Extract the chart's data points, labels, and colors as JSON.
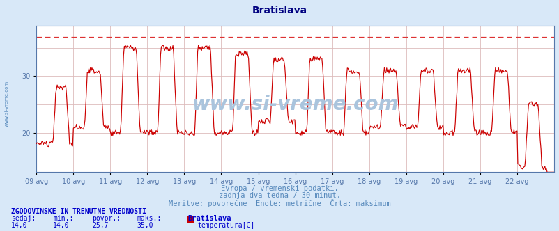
{
  "title": "Bratislava",
  "title_color": "#000080",
  "title_fontsize": 10,
  "bg_color": "#d8e8f8",
  "plot_bg_color": "#ffffff",
  "line_color": "#cc0000",
  "dashed_line_color": "#dd3333",
  "dashed_line_y": 37.0,
  "ylim": [
    13,
    39
  ],
  "yticks": [
    20,
    30
  ],
  "watermark": "www.si-vreme.com",
  "watermark_color": "#aac4dd",
  "watermark_alpha": 0.55,
  "footer_lines": [
    "Evropa / vremenski podatki.",
    "zadnja dva tedna / 30 minut.",
    "Meritve: povprečne  Enote: metrične  Črta: maksimum"
  ],
  "footer_color": "#5588bb",
  "footer_fontsize": 7.5,
  "stats_header": "ZGODOVINSKE IN TRENUTNE VREDNOSTI",
  "stats_color": "#0000cc",
  "stats_labels": [
    "sedaj:",
    "min.:",
    "povpr.:",
    "maks.:"
  ],
  "stats_values": [
    "14,0",
    "14,0",
    "25,7",
    "35,0"
  ],
  "stats_station": "Bratislava",
  "stats_param": "temperatura[C]",
  "legend_color": "#cc0000",
  "x_tick_labels": [
    "09 avg",
    "10 avg",
    "11 avg",
    "12 avg",
    "13 avg",
    "14 avg",
    "15 avg",
    "16 avg",
    "17 avg",
    "18 avg",
    "19 avg",
    "20 avg",
    "21 avg",
    "22 avg"
  ],
  "grid_color": "#ddbbbb",
  "axis_color": "#5577aa",
  "left_label_color": "#5588bb",
  "n_days": 14,
  "n_per_day": 48
}
